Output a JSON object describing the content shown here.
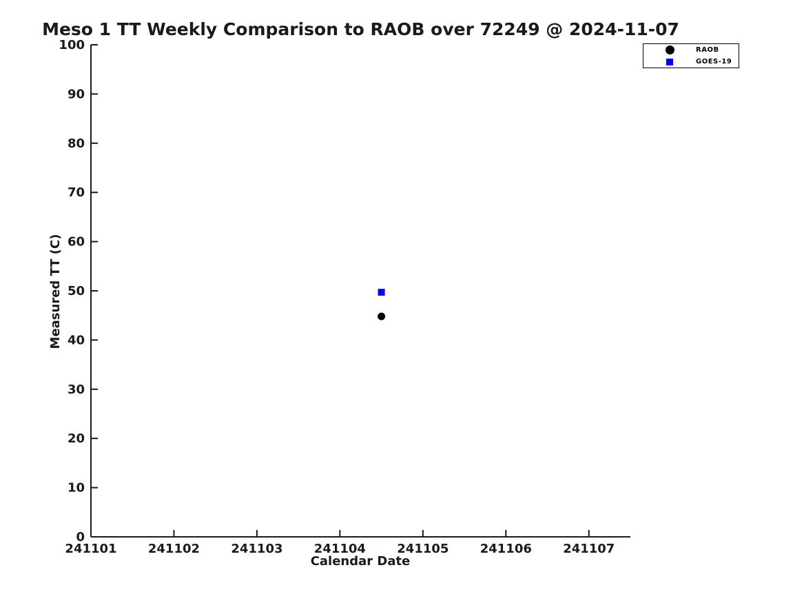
{
  "page": {
    "background_color": "#ffffff",
    "text_color": "#1a1a1a"
  },
  "chart_data": {
    "type": "scatter",
    "title": "Meso 1 TT Weekly Comparison to RAOB over 72249 @ 2024-11-07",
    "xlabel": "Calendar Date",
    "ylabel": "Measured TT (C)",
    "xlim": [
      241101,
      241107.5
    ],
    "ylim": [
      0,
      100
    ],
    "x_ticks": [
      241101,
      241102,
      241103,
      241104,
      241105,
      241106,
      241107
    ],
    "y_ticks": [
      0,
      10,
      20,
      30,
      40,
      50,
      60,
      70,
      80,
      90,
      100
    ],
    "grid": false,
    "axis_color": "#1a1a1a",
    "legend_position": "top-right-outside",
    "series": [
      {
        "name": "RAOB",
        "marker": "circle",
        "color": "#000000",
        "points": [
          {
            "x": 241104.5,
            "y": 44.8
          }
        ]
      },
      {
        "name": "GOES-19",
        "marker": "square",
        "color": "#0000ff",
        "points": [
          {
            "x": 241104.5,
            "y": 49.7
          }
        ]
      }
    ]
  }
}
